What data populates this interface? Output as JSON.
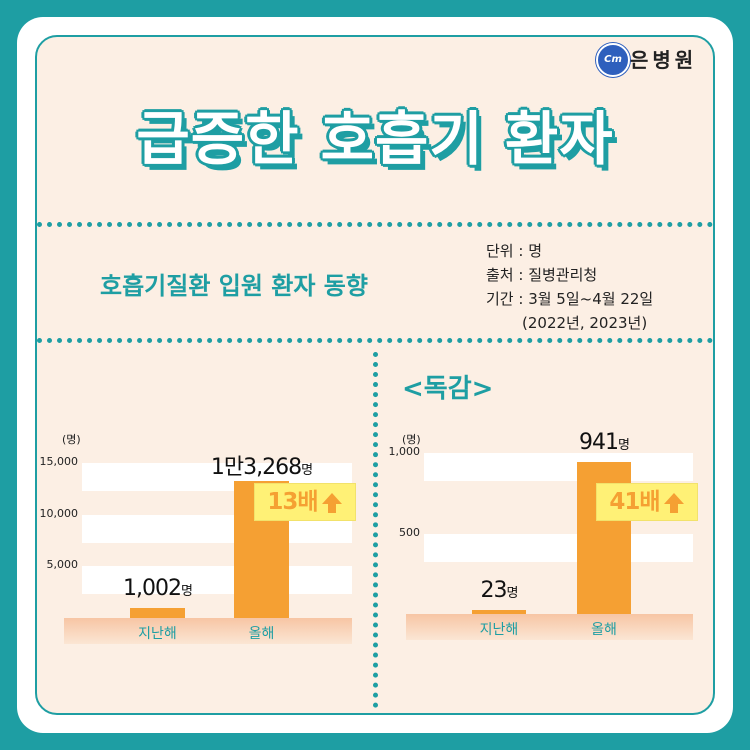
{
  "brand": {
    "logo_text": "Cm",
    "name": "은병원"
  },
  "title": "급증한 호흡기 환자",
  "subtitle": "호흡기질환 입원 환자 동향",
  "meta": {
    "unit": "단위 : 명",
    "source": "출처 : 질병관리청",
    "period": "기간 : 3월 5일~4월 22일",
    "years": "(2022년, 2023년)"
  },
  "section_label": "<독감>",
  "colors": {
    "accent": "#1e9ea3",
    "bar": "#f5a033",
    "badge": "#fff176",
    "background": "#fcefe4"
  },
  "chart_data": [
    {
      "type": "bar",
      "title": "",
      "ylabel": "(명)",
      "ylim": [
        0,
        15000
      ],
      "yticks": [
        {
          "value": 5000,
          "label": "5,000"
        },
        {
          "value": 10000,
          "label": "10,000"
        },
        {
          "value": 15000,
          "label": "15,000"
        }
      ],
      "categories": [
        "지난해",
        "올해"
      ],
      "values": [
        1002,
        13268
      ],
      "data_labels": [
        {
          "num": "1,002",
          "unit": "명"
        },
        {
          "num": "1만3,268",
          "unit": "명"
        }
      ],
      "annotation": "13배",
      "annotation_icon": "up-arrow-icon"
    },
    {
      "type": "bar",
      "title": "독감",
      "ylabel": "(명)",
      "ylim": [
        0,
        1000
      ],
      "yticks": [
        {
          "value": 500,
          "label": "500"
        },
        {
          "value": 1000,
          "label": "1,000"
        }
      ],
      "categories": [
        "지난해",
        "올해"
      ],
      "values": [
        23,
        941
      ],
      "data_labels": [
        {
          "num": "23",
          "unit": "명"
        },
        {
          "num": "941",
          "unit": "명"
        }
      ],
      "annotation": "41배",
      "annotation_icon": "up-arrow-icon"
    }
  ]
}
